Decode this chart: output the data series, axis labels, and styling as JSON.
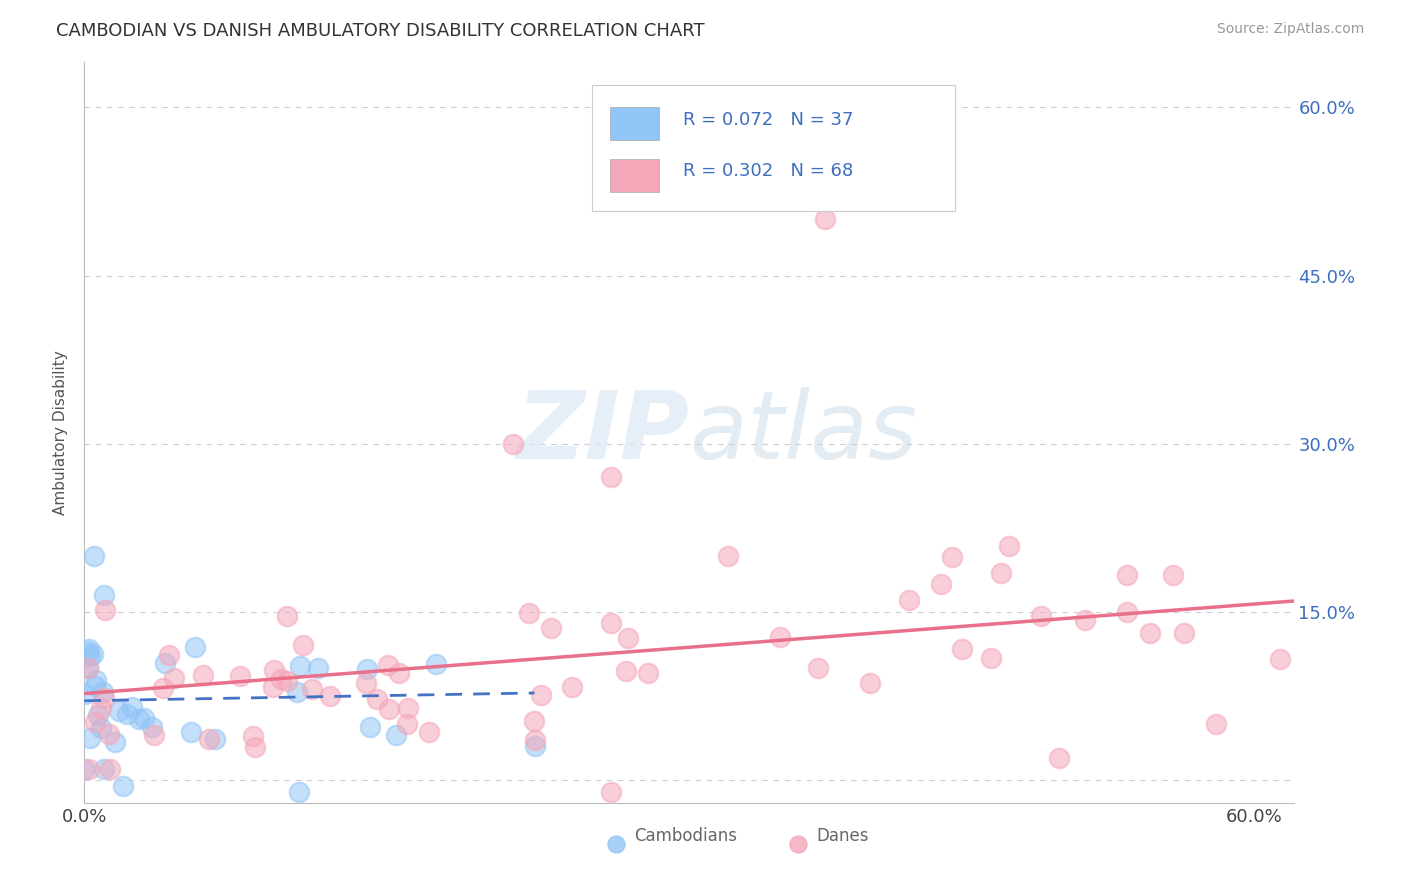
{
  "title": "CAMBODIAN VS DANISH AMBULATORY DISABILITY CORRELATION CHART",
  "source": "Source: ZipAtlas.com",
  "ylabel": "Ambulatory Disability",
  "cambodian_color": "#92C5F7",
  "dane_color": "#F4A7B9",
  "cambodian_line_color": "#4472C4",
  "dane_line_color": "#E8708A",
  "cambodian_R": 0.072,
  "cambodian_N": 37,
  "dane_R": 0.302,
  "dane_N": 68,
  "legend_text_color": "#3D6EBF",
  "background_color": "#FFFFFF",
  "grid_color": "#CCCCDD",
  "xlim": [
    0.0,
    0.62
  ],
  "ylim": [
    -0.02,
    0.64
  ],
  "y_ticks": [
    0.0,
    0.15,
    0.3,
    0.45,
    0.6
  ],
  "x_ticks": [
    0.0,
    0.1,
    0.2,
    0.3,
    0.4,
    0.5,
    0.6
  ]
}
